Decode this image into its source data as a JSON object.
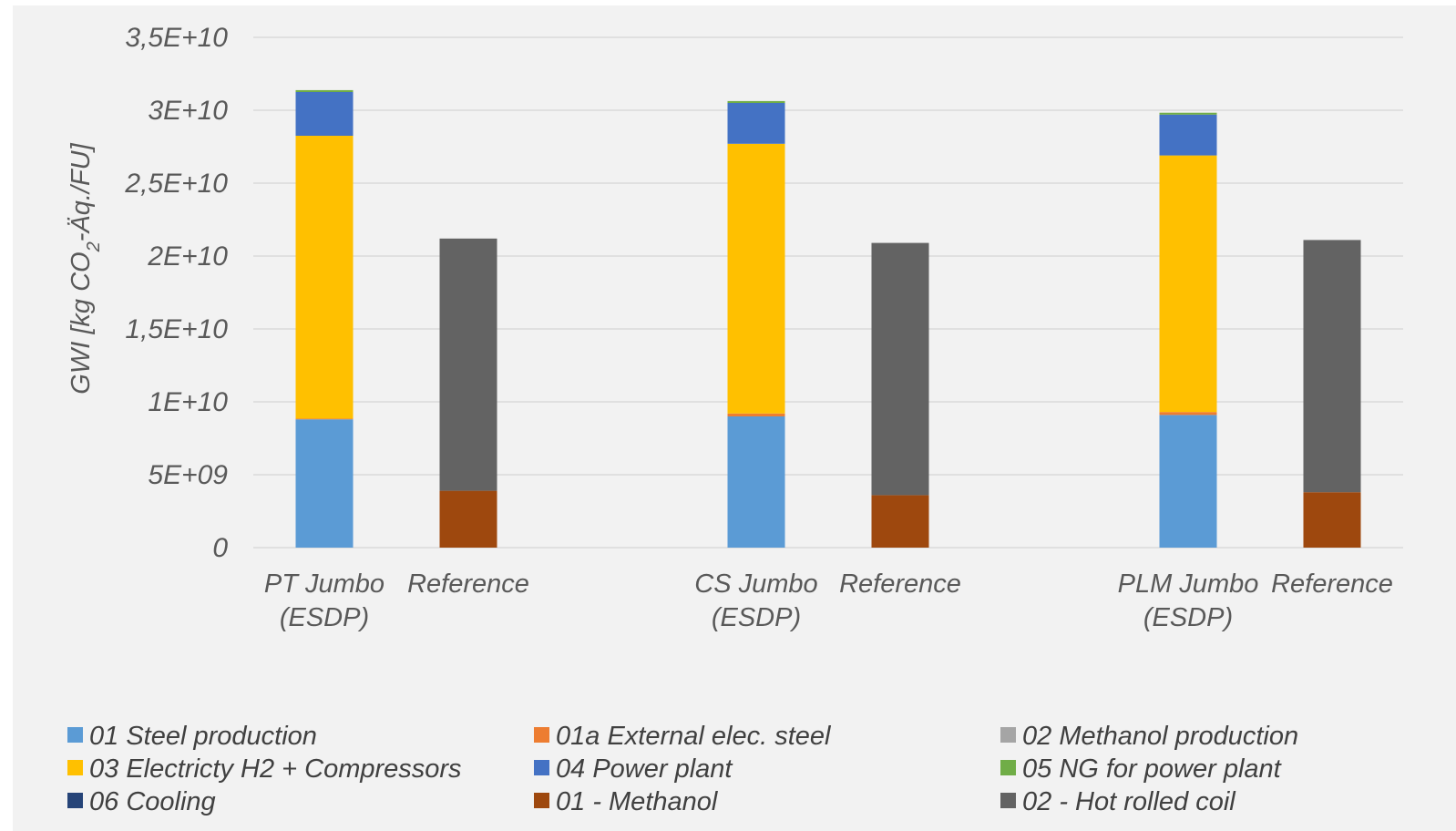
{
  "chart_data": {
    "type": "bar",
    "stacked": true,
    "ylabel": "GWI [kg CO2-Äq./FU]",
    "ylim": [
      0,
      35000000000
    ],
    "yticks": [
      {
        "value": 0,
        "label": "0"
      },
      {
        "value": 5000000000,
        "label": "5E+09"
      },
      {
        "value": 10000000000,
        "label": "1E+10"
      },
      {
        "value": 15000000000,
        "label": "1,5E+10"
      },
      {
        "value": 20000000000,
        "label": "2E+10"
      },
      {
        "value": 25000000000,
        "label": "2,5E+10"
      },
      {
        "value": 30000000000,
        "label": "3E+10"
      },
      {
        "value": 35000000000,
        "label": "3,5E+10"
      }
    ],
    "grid": true,
    "legend_position": "bottom",
    "categories": [
      [
        "PT Jumbo",
        "(ESDP)"
      ],
      [
        "Reference"
      ],
      [
        "CS Jumbo",
        "(ESDP)"
      ],
      [
        "Reference"
      ],
      [
        "PLM Jumbo",
        "(ESDP)"
      ],
      [
        "Reference"
      ]
    ],
    "series": [
      {
        "name": "01 Steel production",
        "color": "#5b9bd5",
        "values": [
          8800000000,
          0,
          9000000000,
          0,
          9100000000,
          0
        ]
      },
      {
        "name": "01a External elec. steel",
        "color": "#ed7d31",
        "values": [
          50000000,
          0,
          200000000,
          0,
          200000000,
          0
        ]
      },
      {
        "name": "02 Methanol production",
        "color": "#a5a5a5",
        "values": [
          0,
          0,
          0,
          0,
          0,
          0
        ]
      },
      {
        "name": "03 Electricty H2 + Compressors",
        "color": "#ffc000",
        "values": [
          19400000000,
          0,
          18500000000,
          0,
          17600000000,
          0
        ]
      },
      {
        "name": "04 Power plant",
        "color": "#4472c4",
        "values": [
          3000000000,
          0,
          2800000000,
          0,
          2800000000,
          0
        ]
      },
      {
        "name": "05 NG for power plant",
        "color": "#70ad47",
        "values": [
          130000000,
          0,
          130000000,
          0,
          130000000,
          0
        ]
      },
      {
        "name": "06 Cooling",
        "color": "#264478",
        "values": [
          0,
          0,
          0,
          0,
          0,
          0
        ]
      },
      {
        "name": "01 - Methanol",
        "color": "#9e480e",
        "values": [
          0,
          3900000000,
          0,
          3600000000,
          0,
          3800000000
        ]
      },
      {
        "name": "02 - Hot rolled coil",
        "color": "#636363",
        "values": [
          0,
          17300000000,
          0,
          17300000000,
          0,
          17300000000
        ]
      }
    ]
  }
}
